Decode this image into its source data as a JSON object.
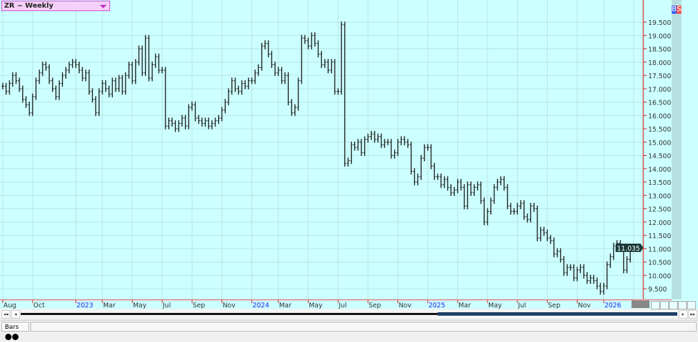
{
  "header": {
    "symbol": "ZR",
    "period_label": "~ Weekly"
  },
  "right_strip": {
    "buy": "B",
    "sell": "S"
  },
  "colors": {
    "background": "#ccffff",
    "bars": "#222222",
    "axis": "#dd2222",
    "year_label": "#2222ee",
    "price_box": "#1a3a3a"
  },
  "tabs": [
    {
      "label": "Bars"
    }
  ],
  "chart_data": {
    "type": "ohlc-bar",
    "title": "",
    "ylim": [
      9.2,
      19.9
    ],
    "y_ticks": [
      "19.500",
      "19.000",
      "18.500",
      "18.000",
      "17.500",
      "17.000",
      "16.500",
      "16.000",
      "15.500",
      "15.000",
      "14.500",
      "14.000",
      "13.500",
      "13.000",
      "12.500",
      "12.000",
      "11.500",
      "11.000",
      "10.500",
      "10.000",
      "9.500"
    ],
    "last_price": "11.035",
    "grid": true,
    "x_ticks": [
      {
        "label": "Aug",
        "bar": 0,
        "year": false
      },
      {
        "label": "Oct",
        "bar": 9,
        "year": false
      },
      {
        "label": "2023",
        "bar": 22,
        "year": true
      },
      {
        "label": "Mar",
        "bar": 30,
        "year": false
      },
      {
        "label": "May",
        "bar": 39,
        "year": false
      },
      {
        "label": "Jul",
        "bar": 48,
        "year": false
      },
      {
        "label": "Sep",
        "bar": 57,
        "year": false
      },
      {
        "label": "Nov",
        "bar": 66,
        "year": false
      },
      {
        "label": "2024",
        "bar": 75,
        "year": true
      },
      {
        "label": "Mar",
        "bar": 83,
        "year": false
      },
      {
        "label": "May",
        "bar": 92,
        "year": false
      },
      {
        "label": "Jul",
        "bar": 101,
        "year": false
      },
      {
        "label": "Sep",
        "bar": 110,
        "year": false
      },
      {
        "label": "Nov",
        "bar": 119,
        "year": false
      },
      {
        "label": "2025",
        "bar": 128,
        "year": true
      },
      {
        "label": "Mar",
        "bar": 137,
        "year": false
      },
      {
        "label": "May",
        "bar": 146,
        "year": false
      },
      {
        "label": "Jul",
        "bar": 155,
        "year": false
      },
      {
        "label": "Sep",
        "bar": 164,
        "year": false
      },
      {
        "label": "Nov",
        "bar": 173,
        "year": false
      },
      {
        "label": "2026",
        "bar": 181,
        "year": true
      },
      {
        "label": "Mar",
        "bar": 190,
        "year": false
      }
    ],
    "close": [
      17.1,
      16.9,
      17.2,
      17.5,
      17.3,
      17.0,
      16.6,
      16.4,
      16.1,
      16.7,
      17.3,
      17.6,
      17.9,
      17.8,
      17.3,
      17.0,
      16.7,
      17.2,
      17.5,
      17.7,
      17.9,
      18.0,
      17.9,
      17.7,
      17.4,
      17.6,
      16.9,
      16.6,
      16.1,
      16.9,
      17.2,
      17.0,
      16.8,
      17.3,
      17.0,
      17.4,
      16.9,
      17.5,
      17.9,
      17.3,
      18.0,
      18.5,
      17.6,
      18.9,
      17.4,
      17.9,
      18.2,
      17.7,
      17.7,
      15.6,
      15.8,
      15.7,
      15.5,
      15.7,
      15.9,
      15.6,
      16.3,
      16.4,
      15.9,
      15.8,
      15.7,
      15.8,
      15.6,
      15.7,
      15.8,
      15.9,
      16.2,
      16.5,
      16.9,
      17.3,
      17.0,
      16.9,
      17.2,
      17.1,
      17.3,
      17.3,
      17.6,
      17.8,
      18.6,
      18.7,
      18.3,
      17.9,
      17.6,
      17.7,
      17.3,
      17.5,
      16.5,
      16.1,
      16.3,
      17.3,
      18.9,
      18.8,
      18.6,
      19.0,
      18.7,
      18.3,
      17.9,
      18.0,
      17.7,
      18.0,
      16.9,
      16.9,
      19.4,
      14.2,
      14.3,
      14.9,
      14.8,
      15.0,
      14.6,
      15.1,
      15.2,
      15.3,
      15.1,
      15.2,
      14.9,
      15.0,
      15.0,
      14.5,
      14.6,
      15.0,
      15.1,
      15.0,
      14.9,
      13.9,
      13.5,
      13.7,
      14.4,
      14.8,
      14.8,
      14.1,
      13.7,
      13.7,
      13.4,
      13.6,
      13.3,
      13.1,
      13.2,
      13.5,
      13.3,
      12.6,
      13.4,
      13.1,
      13.3,
      13.4,
      12.8,
      12.0,
      12.4,
      12.8,
      13.3,
      13.5,
      13.6,
      13.3,
      12.6,
      12.4,
      12.4,
      12.6,
      12.7,
      12.2,
      12.1,
      12.6,
      12.5,
      11.4,
      11.7,
      11.6,
      11.4,
      11.3,
      10.8,
      10.9,
      10.6,
      10.1,
      10.3,
      10.3,
      9.9,
      10.2,
      10.3,
      10.0,
      9.8,
      9.9,
      9.8,
      9.6,
      9.4,
      9.6,
      10.4,
      10.7,
      11.1,
      11.2,
      11.0,
      10.2,
      10.6,
      11.0,
      11.035
    ]
  }
}
